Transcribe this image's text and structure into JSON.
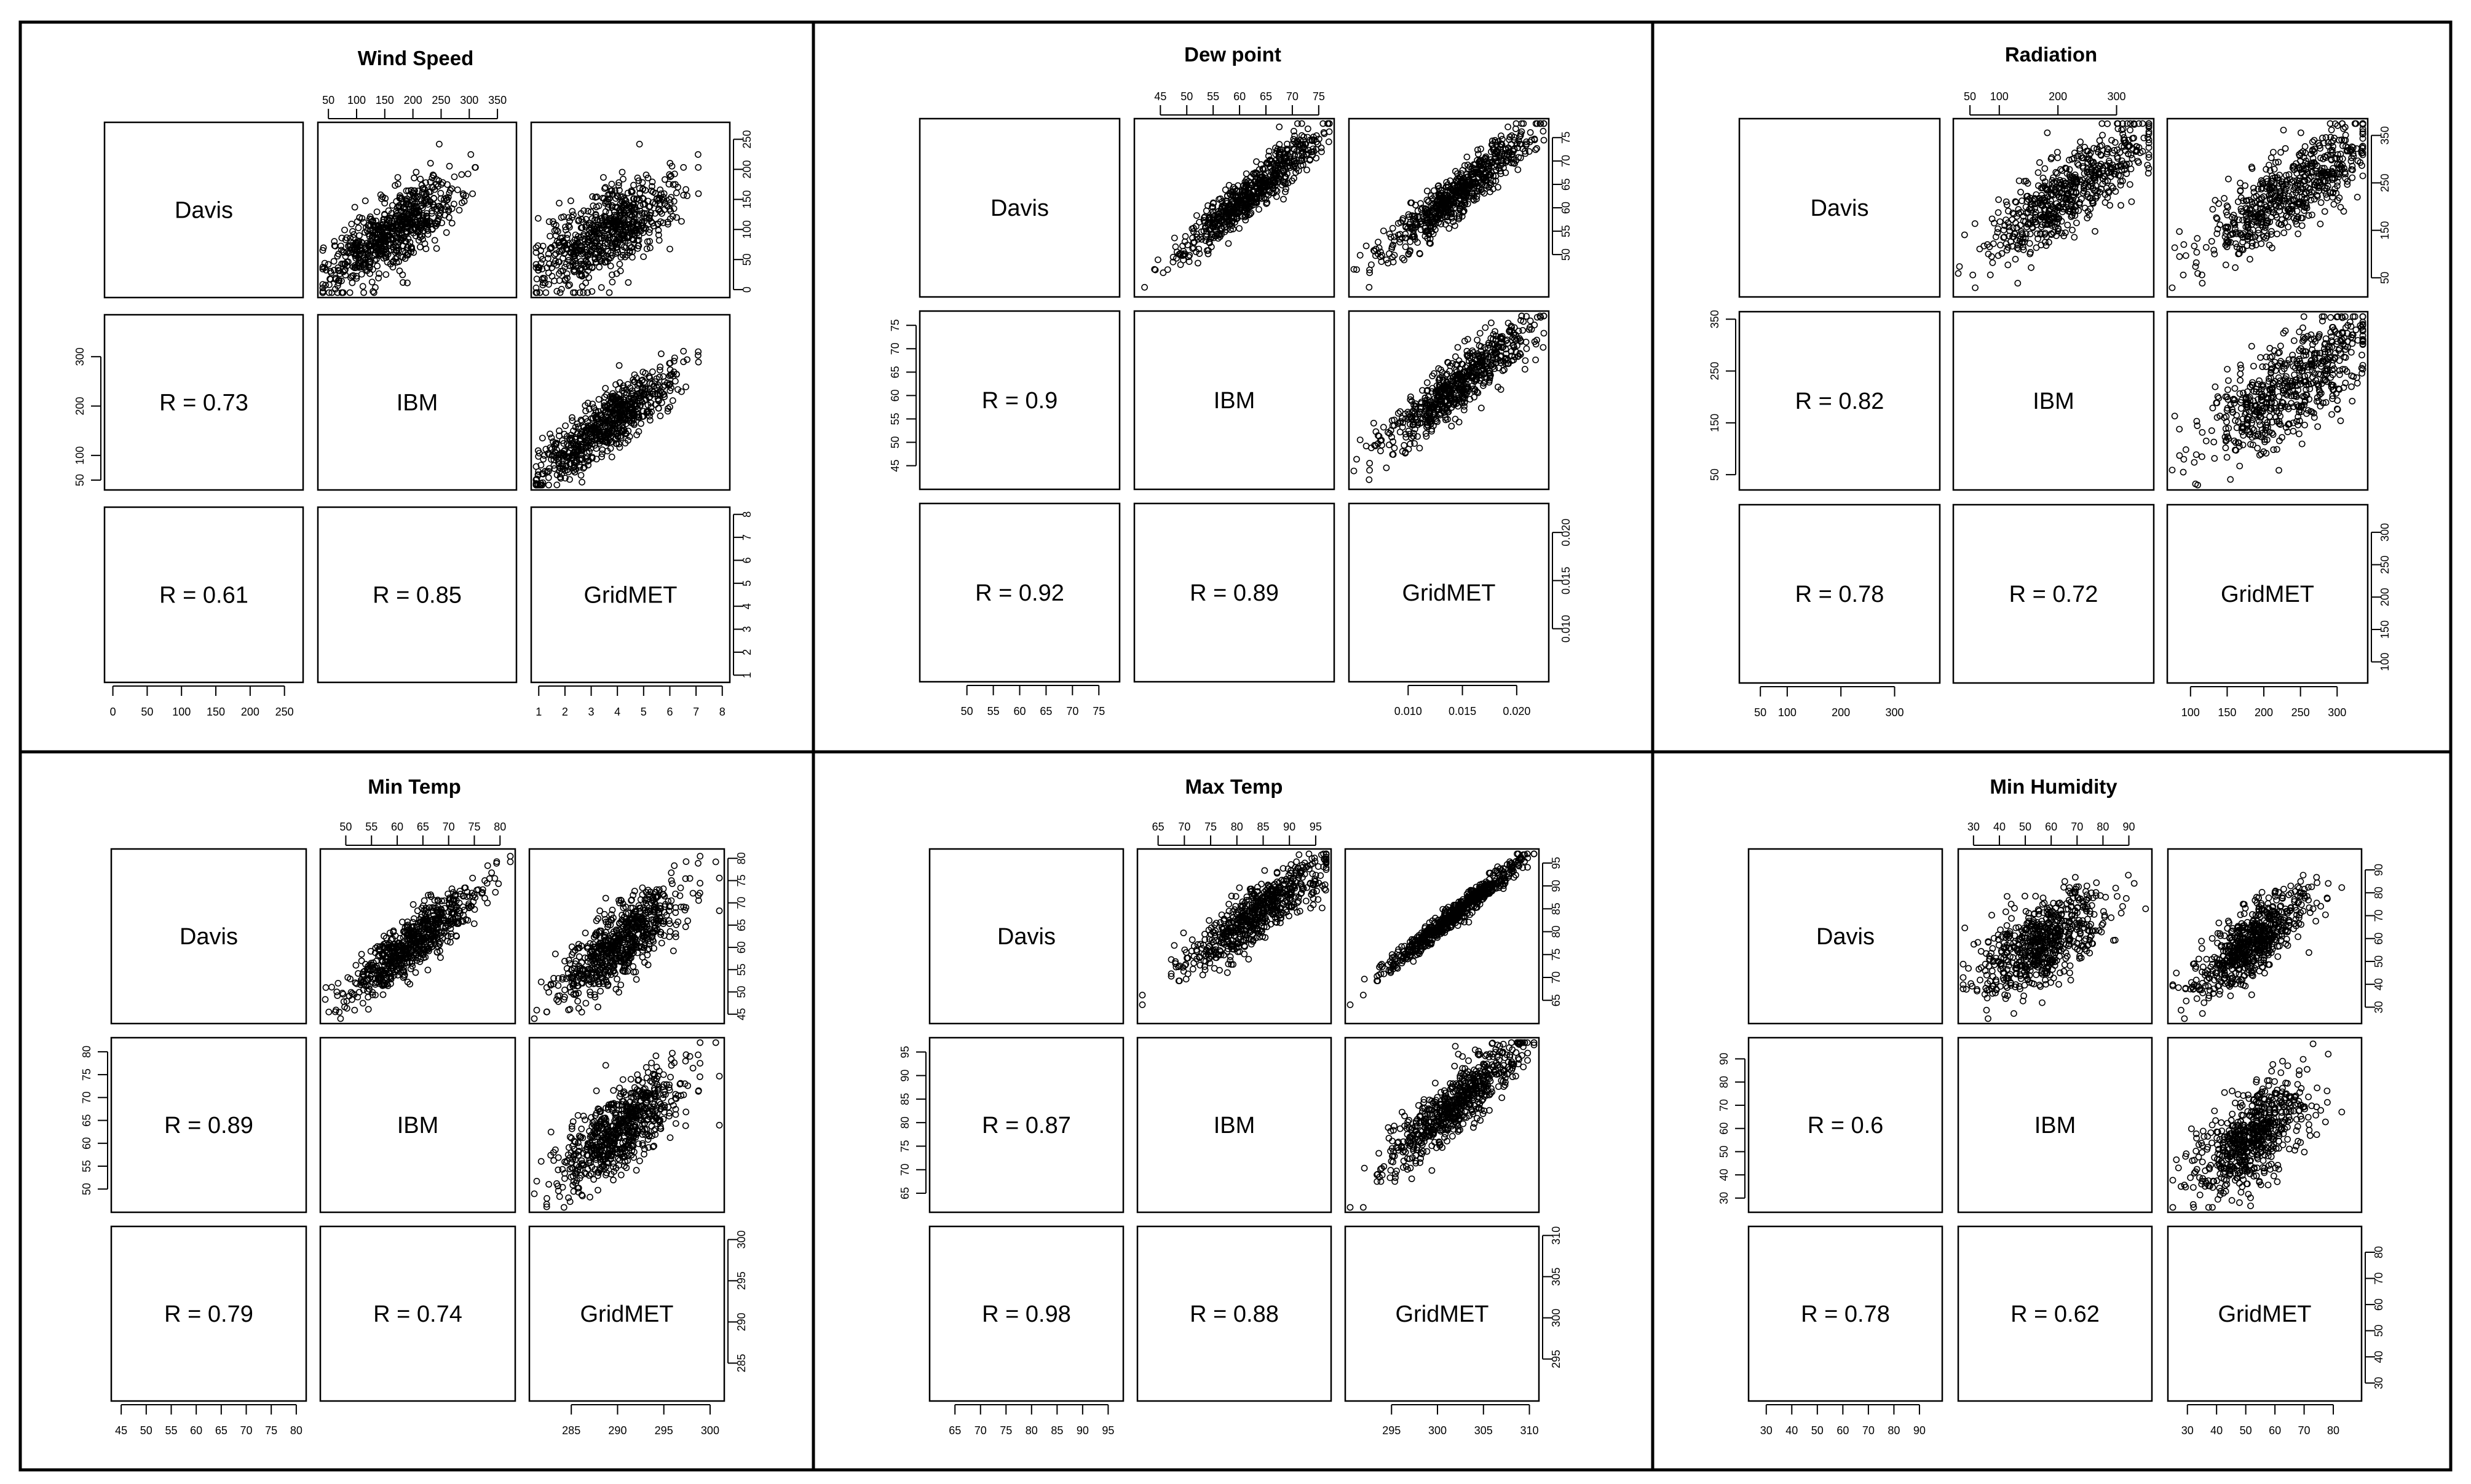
{
  "figure": {
    "type": "scatterplot-matrix-grid",
    "diagonal_labels": [
      "Davis",
      "IBM",
      "GridMET"
    ],
    "r_prefix": "R = "
  },
  "chart_data": [
    {
      "type": "scatter",
      "title": "Wind Speed",
      "variables": [
        "Davis",
        "IBM",
        "GridMET"
      ],
      "correlations": {
        "IBM_Davis": "0.73",
        "GridMET_Davis": "0.61",
        "GridMET_IBM": "0.85"
      },
      "ranges": {
        "Davis": [
          -5,
          270
        ],
        "IBM": [
          40,
          375
        ],
        "GridMET": [
          0.9,
          8.1
        ]
      },
      "ticks": {
        "Davis_x": [
          "0",
          "50",
          "100",
          "150",
          "200",
          "250"
        ],
        "Davis_y": [
          "50",
          "100",
          "200",
          "300"
        ],
        "IBM_top": [
          "50",
          "100",
          "150",
          "200",
          "250",
          "300",
          "350"
        ],
        "GridMET_x": [
          "1",
          "2",
          "3",
          "4",
          "5",
          "6",
          "7",
          "8"
        ],
        "Davis_right": [
          "0",
          "50",
          "100",
          "150",
          "200",
          "250"
        ],
        "GridMET_right": [
          "1",
          "2",
          "3",
          "4",
          "5",
          "6",
          "7",
          "8"
        ]
      }
    },
    {
      "type": "scatter",
      "title": "Dew point",
      "variables": [
        "Davis",
        "IBM",
        "GridMET"
      ],
      "correlations": {
        "IBM_Davis": "0.9",
        "GridMET_Davis": "0.92",
        "GridMET_IBM": "0.89"
      },
      "ranges": {
        "Davis": [
          42,
          78
        ],
        "IBM": [
          41,
          77
        ],
        "GridMET": [
          0.005,
          0.0225
        ]
      },
      "ticks": {
        "Davis_x": [
          "50",
          "55",
          "60",
          "65",
          "70",
          "75"
        ],
        "Davis_y": [
          "45",
          "50",
          "55",
          "60",
          "65",
          "70",
          "75"
        ],
        "IBM_top": [
          "45",
          "50",
          "55",
          "60",
          "65",
          "70",
          "75"
        ],
        "GridMET_x": [
          "0.010",
          "0.015",
          "0.020"
        ],
        "Davis_right": [
          "50",
          "55",
          "60",
          "65",
          "70",
          "75"
        ],
        "GridMET_right": [
          "0.010",
          "0.015",
          "0.020"
        ]
      }
    },
    {
      "type": "scatter",
      "title": "Radiation",
      "variables": [
        "Davis",
        "IBM",
        "GridMET"
      ],
      "correlations": {
        "IBM_Davis": "0.82",
        "GridMET_Davis": "0.78",
        "GridMET_IBM": "0.72"
      },
      "ranges": {
        "Davis": [
          20,
          375
        ],
        "IBM": [
          30,
          355
        ],
        "GridMET": [
          75,
          335
        ]
      },
      "ticks": {
        "Davis_x": [
          "50",
          "100",
          "200",
          "300"
        ],
        "Davis_y": [
          "50",
          "150",
          "250",
          "350"
        ],
        "IBM_top": [
          "50",
          "100",
          "200",
          "300"
        ],
        "GridMET_x": [
          "100",
          "150",
          "200",
          "250",
          "300"
        ],
        "Davis_right": [
          "50",
          "150",
          "250",
          "350"
        ],
        "GridMET_right": [
          "100",
          "150",
          "200",
          "250",
          "300"
        ]
      }
    },
    {
      "type": "scatter",
      "title": "Min Temp",
      "variables": [
        "Davis",
        "IBM",
        "GridMET"
      ],
      "correlations": {
        "IBM_Davis": "0.89",
        "GridMET_Davis": "0.79",
        "GridMET_IBM": "0.74"
      },
      "ranges": {
        "Davis": [
          44,
          81
        ],
        "IBM": [
          46,
          82
        ],
        "GridMET": [
          281,
          301
        ]
      },
      "ticks": {
        "Davis_x": [
          "45",
          "50",
          "55",
          "60",
          "65",
          "70",
          "75",
          "80"
        ],
        "Davis_y": [
          "50",
          "55",
          "60",
          "65",
          "70",
          "75",
          "80"
        ],
        "IBM_top": [
          "50",
          "55",
          "60",
          "65",
          "70",
          "75",
          "80"
        ],
        "GridMET_x": [
          "285",
          "290",
          "295",
          "300"
        ],
        "Davis_right": [
          "45",
          "50",
          "55",
          "60",
          "65",
          "70",
          "75",
          "80"
        ],
        "GridMET_right": [
          "285",
          "290",
          "295",
          "300"
        ]
      }
    },
    {
      "type": "scatter",
      "title": "Max Temp",
      "variables": [
        "Davis",
        "IBM",
        "GridMET"
      ],
      "correlations": {
        "IBM_Davis": "0.87",
        "GridMET_Davis": "0.98",
        "GridMET_IBM": "0.88"
      },
      "ranges": {
        "Davis": [
          61,
          97
        ],
        "IBM": [
          62,
          97
        ],
        "GridMET": [
          290.5,
          310.5
        ]
      },
      "ticks": {
        "Davis_x": [
          "65",
          "70",
          "75",
          "80",
          "85",
          "90",
          "95"
        ],
        "Davis_y": [
          "65",
          "70",
          "75",
          "80",
          "85",
          "90",
          "95"
        ],
        "IBM_top": [
          "65",
          "70",
          "75",
          "80",
          "85",
          "90",
          "95"
        ],
        "GridMET_x": [
          "295",
          "300",
          "305",
          "310"
        ],
        "Davis_right": [
          "65",
          "70",
          "75",
          "80",
          "85",
          "90",
          "95"
        ],
        "GridMET_right": [
          "295",
          "300",
          "305",
          "310"
        ]
      }
    },
    {
      "type": "scatter",
      "title": "Min Humidity",
      "variables": [
        "Davis",
        "IBM",
        "GridMET"
      ],
      "correlations": {
        "IBM_Davis": "0.6",
        "GridMET_Davis": "0.78",
        "GridMET_IBM": "0.62"
      },
      "ranges": {
        "Davis": [
          25,
          97
        ],
        "IBM": [
          26,
          97
        ],
        "GridMET": [
          25,
          88
        ]
      },
      "ticks": {
        "Davis_x": [
          "30",
          "40",
          "50",
          "60",
          "70",
          "80",
          "90"
        ],
        "Davis_y": [
          "30",
          "40",
          "50",
          "60",
          "70",
          "80",
          "90"
        ],
        "IBM_top": [
          "30",
          "40",
          "50",
          "60",
          "70",
          "80",
          "90"
        ],
        "GridMET_x": [
          "30",
          "40",
          "50",
          "60",
          "70",
          "80"
        ],
        "Davis_right": [
          "30",
          "40",
          "50",
          "60",
          "70",
          "80",
          "90"
        ],
        "GridMET_right": [
          "30",
          "40",
          "50",
          "60",
          "70",
          "80"
        ]
      }
    }
  ]
}
